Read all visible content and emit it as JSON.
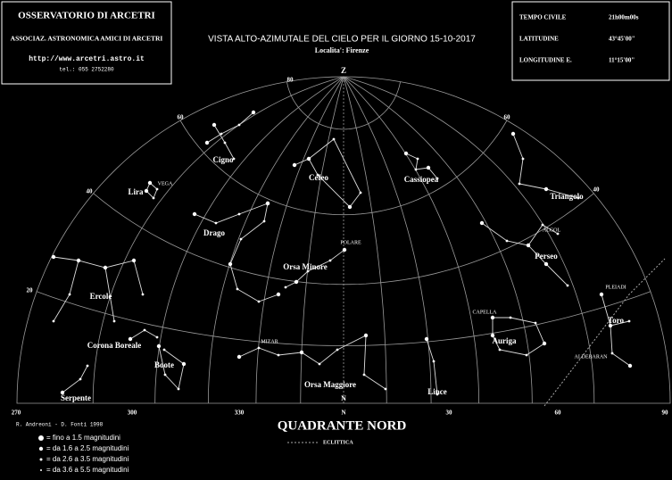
{
  "header_left": [
    "OSSERVATORIO DI ARCETRI",
    "ASSOCIAZ. ASTRONOMICA AMICI DI ARCETRI",
    "http://www.arcetri.astro.it",
    "tel.: 055 2752280"
  ],
  "title": "VISTA ALTO-AZIMUTALE DEL CIELO PER IL GIORNO 15-10-2017",
  "subtitle": "Localita': Firenze",
  "info": [
    {
      "label": "TEMPO CIVILE",
      "value": "21h00m00s"
    },
    {
      "label": "LATITUDINE",
      "value": "43°45'00\""
    },
    {
      "label": "LONGITUDINE E.",
      "value": "11°15'00\""
    }
  ],
  "zenith": "Z",
  "altitude_labels": [
    "80",
    "60",
    "40",
    "20"
  ],
  "azimuth_labels": [
    "270",
    "300",
    "330",
    "N",
    "30",
    "60",
    "90"
  ],
  "north": "N",
  "constellations": [
    "Cigno",
    "Lira",
    "Cefeo",
    "Cassiopea",
    "Triangolo",
    "Drago",
    "Orsa Minore",
    "Perseo",
    "Ercole",
    "Auriga",
    "Toro",
    "Corona Boreale",
    "Boote",
    "Orsa Maggiore",
    "Lince",
    "Serpente"
  ],
  "stars": [
    "VEGA",
    "POLARE",
    "ALGOL",
    "CAPELLA",
    "PLEIADI",
    "ALDEBARAN",
    "MIZAR"
  ],
  "quadrant": "QUADRANTE NORD",
  "credits": "R. Andreoni - D. Fonti 1998",
  "legend": [
    "= fino a 1.5 magnitudini",
    "= da 1.6 a 2.5 magnitudini",
    "= da 2.6 a 3.5 magnitudini",
    "= da 3.6 a 5.5 magnitudini"
  ],
  "ecliptic": "ECLITTICA"
}
